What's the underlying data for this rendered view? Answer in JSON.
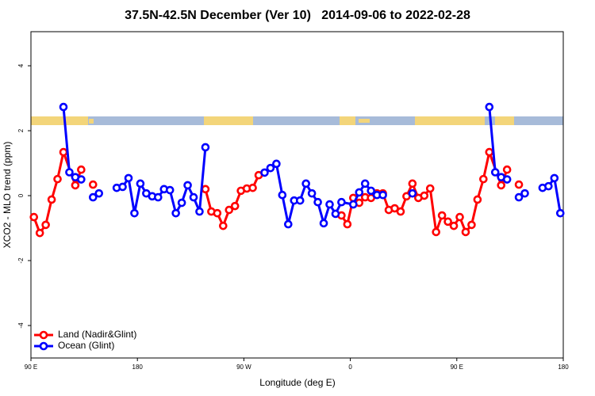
{
  "chart_data": {
    "type": "line",
    "title": "37.5N-42.5N December (Ver 10)   2014-09-06 to 2022-02-28",
    "xlabel": "Longitude (deg E)",
    "ylabel": "XCO2 - MLO trend (ppm)",
    "xlim": [
      90,
      540
    ],
    "ylim": [
      -5,
      5.05
    ],
    "xticks": [
      {
        "value": 90,
        "label": "90 E"
      },
      180,
      {
        "value": 270,
        "label": "90 W"
      },
      {
        "value": 360,
        "label": "0"
      },
      {
        "value": 450,
        "label": "90 E"
      },
      {
        "value": 540,
        "label": "180"
      }
    ],
    "yticks": [
      -4,
      -2,
      0,
      2,
      4
    ],
    "legend": "bottomleft",
    "series": [
      {
        "name": "Land (Nadir&Glint)",
        "color": "#ff0000",
        "x": [
          92.5,
          97.5,
          102.5,
          107.5,
          112.5,
          117.5,
          127.5,
          132.5,
          137.5,
          142.5,
          147.5,
          237.5,
          242.5,
          247.5,
          252.5,
          257.5,
          262.5,
          267.5,
          272.5,
          277.5,
          282.5,
          287.5,
          352.5,
          357.5,
          362.5,
          367.5,
          372.5,
          377.5,
          382.5,
          387.5,
          392.5,
          397.5,
          402.5,
          407.5,
          412.5,
          417.5,
          422.5,
          427.5,
          432.5,
          437.5,
          442.5,
          447.5,
          452.5,
          457.5,
          462.5,
          467.5,
          472.5,
          477.5,
          487.5,
          492.5,
          497.5,
          502.5
        ],
        "values": [
          -0.66,
          -1.15,
          -0.9,
          -0.12,
          0.51,
          1.34,
          0.32,
          0.8,
          null,
          0.34,
          null,
          0.2,
          -0.49,
          -0.54,
          -0.93,
          -0.44,
          -0.32,
          0.15,
          0.22,
          0.24,
          0.63,
          null,
          -0.61,
          -0.88,
          -0.07,
          -0.22,
          -0.05,
          -0.07,
          0.07,
          0.07,
          -0.44,
          -0.39,
          -0.49,
          -0.02,
          0.37,
          -0.07,
          0,
          0.22,
          -1.12,
          -0.61,
          -0.8,
          -0.93,
          -0.66,
          -1.12,
          -0.9,
          -0.12,
          0.51,
          1.34,
          0.32,
          0.8,
          null,
          0.34
        ]
      },
      {
        "name": "Ocean (Glint)",
        "color": "#0000ff",
        "x": [
          117.5,
          122.5,
          127.5,
          132.5,
          137.5,
          142.5,
          147.5,
          152.5,
          162.5,
          167.5,
          172.5,
          177.5,
          182.5,
          187.5,
          192.5,
          197.5,
          202.5,
          207.5,
          212.5,
          217.5,
          222.5,
          227.5,
          232.5,
          237.5,
          242.5,
          287.5,
          292.5,
          297.5,
          302.5,
          307.5,
          312.5,
          317.5,
          322.5,
          327.5,
          332.5,
          337.5,
          342.5,
          347.5,
          352.5,
          362.5,
          367.5,
          372.5,
          377.5,
          382.5,
          387.5,
          392.5,
          412.5,
          417.5,
          477.5,
          482.5,
          487.5,
          492.5,
          497.5,
          502.5,
          507.5,
          512.5,
          522.5,
          527.5,
          532.5,
          537.5
        ],
        "values": [
          2.73,
          0.72,
          0.57,
          0.5,
          null,
          -0.05,
          0.07,
          null,
          0.24,
          0.27,
          0.54,
          -0.54,
          0.37,
          0.07,
          -0.02,
          -0.05,
          0.2,
          0.17,
          -0.54,
          -0.22,
          0.32,
          -0.05,
          -0.49,
          1.49,
          null,
          0.71,
          0.85,
          0.98,
          0.02,
          -0.88,
          -0.15,
          -0.15,
          0.37,
          0.07,
          -0.2,
          -0.85,
          -0.27,
          -0.56,
          -0.2,
          -0.27,
          0.1,
          0.37,
          0.15,
          0.02,
          0.02,
          null,
          0.07,
          null,
          2.73,
          0.72,
          0.57,
          0.5,
          null,
          -0.05,
          0.07,
          null,
          0.24,
          0.29,
          0.54,
          -0.54
        ]
      }
    ]
  }
}
